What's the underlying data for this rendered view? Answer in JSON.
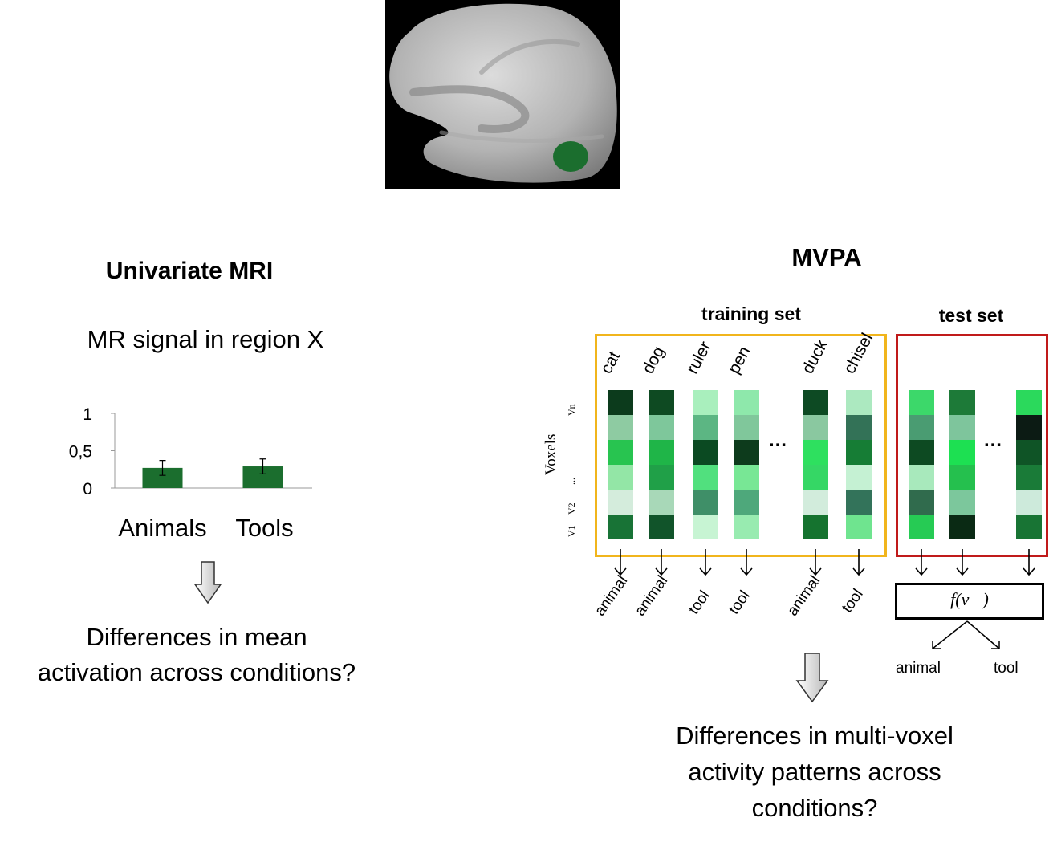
{
  "brain": {
    "highlight_color": "#1b6e2e"
  },
  "univariate": {
    "title": "Univariate MRI",
    "subtitle": "MR signal in region X",
    "question": "Differences in mean activation across conditions?",
    "question_lines": [
      "Differences in mean",
      "activation across conditions?"
    ]
  },
  "chart_data": {
    "type": "bar",
    "categories": [
      "Animals",
      "Tools"
    ],
    "values": [
      0.27,
      0.29
    ],
    "error": [
      0.1,
      0.1
    ],
    "ylim": [
      0,
      1
    ],
    "yticks": [
      "1",
      "0,5",
      "0"
    ],
    "bar_color": "#1b6e2e"
  },
  "mvpa": {
    "title": "MVPA",
    "training_label": "training set",
    "test_label": "test set",
    "voxels_label": "Voxels",
    "voxel_labels": [
      "V1",
      "V2",
      "...",
      "Vn"
    ],
    "ellipsis": "…",
    "items": [
      "cat",
      "dog",
      "ruler",
      "pen",
      "duck",
      "chisel"
    ],
    "train_outputs": [
      "animal",
      "animal",
      "tool",
      "tool",
      "animal",
      "tool"
    ],
    "function_label": "f(v⃗)",
    "classifier_outputs": [
      "animal",
      "tool"
    ],
    "question_lines": [
      "Differences in multi-voxel",
      "activity patterns across",
      "conditions?"
    ],
    "train_columns": [
      [
        "#0c3b1c",
        "#8ecba2",
        "#28c450",
        "#93e6a6",
        "#d4ecdc",
        "#187336"
      ],
      [
        "#0e4a22",
        "#7ec79b",
        "#1fb548",
        "#20a048",
        "#a8d8b8",
        "#11542a"
      ],
      [
        "#a9efbd",
        "#5cb683",
        "#0b4a22",
        "#51e07e",
        "#3f8f68",
        "#c7f4d3"
      ],
      [
        "#8ee8ab",
        "#80c79b",
        "#0d3b1c",
        "#78e795",
        "#4ea87b",
        "#98ebb0"
      ],
      [
        "#0d4a23",
        "#8ac8a0",
        "#2ee05f",
        "#35d765",
        "#d2ecdc",
        "#15732f"
      ],
      [
        "#ace9c0",
        "#337257",
        "#167d35",
        "#c5f1d3",
        "#33735a",
        "#6fe48f"
      ]
    ],
    "test_columns": [
      [
        "#3cd86a",
        "#4a9c72",
        "#0d4a22",
        "#a8e9bc",
        "#306b4d",
        "#26cb54"
      ],
      [
        "#1d7a38",
        "#7ec59c",
        "#1de052",
        "#25c04e",
        "#7cc79c",
        "#0a2a14"
      ],
      [
        "#2bd95c",
        "#0c1b14",
        "#0f5426",
        "#1a7b38",
        "#cdeadb",
        "#187434"
      ]
    ]
  }
}
